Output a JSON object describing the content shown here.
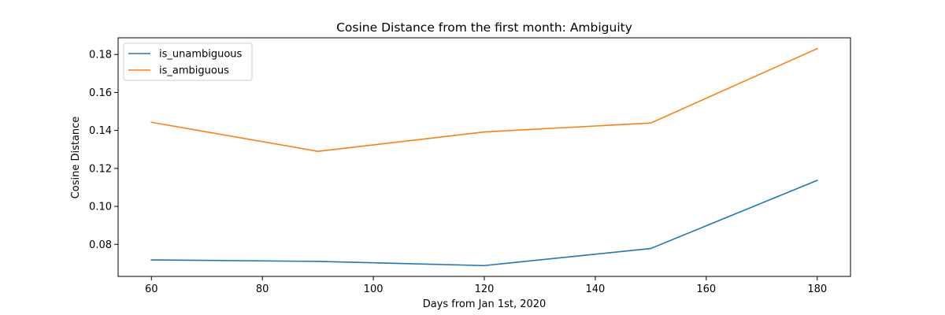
{
  "chart_data": {
    "type": "line",
    "title": "Cosine Distance from the first month: Ambiguity",
    "xlabel": "Days from Jan 1st, 2020",
    "ylabel": "Cosine Distance",
    "x": [
      60,
      90,
      120,
      150,
      180
    ],
    "series": [
      {
        "name": "is_unambiguous",
        "color": "#1f77b4",
        "values": [
          0.0718,
          0.071,
          0.0688,
          0.0778,
          0.1137
        ]
      },
      {
        "name": "is_ambiguous",
        "color": "#ff7f0e",
        "values": [
          0.1443,
          0.129,
          0.1392,
          0.1439,
          0.1831
        ]
      }
    ],
    "xlim": [
      54,
      186
    ],
    "ylim": [
      0.0631,
      0.1888
    ],
    "xticks": [
      60,
      80,
      100,
      120,
      140,
      160,
      180
    ],
    "xtick_labels": [
      "60",
      "80",
      "100",
      "120",
      "140",
      "160",
      "180"
    ],
    "yticks": [
      0.08,
      0.1,
      0.12,
      0.14,
      0.16,
      0.18
    ],
    "ytick_labels": [
      "0.08",
      "0.10",
      "0.12",
      "0.14",
      "0.16",
      "0.18"
    ],
    "grid": false,
    "legend_position": "upper-left"
  }
}
